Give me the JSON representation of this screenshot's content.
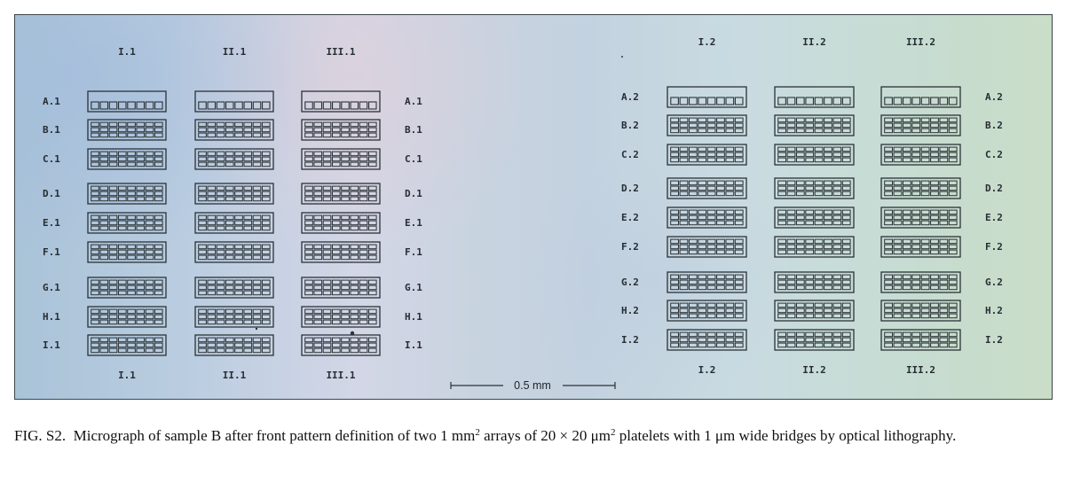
{
  "figure": {
    "arrays": [
      {
        "id": "1",
        "column_labels": [
          "I.1",
          "II.1",
          "III.1"
        ],
        "row_labels": [
          "A.1",
          "B.1",
          "C.1",
          "D.1",
          "E.1",
          "F.1",
          "G.1",
          "H.1",
          "I.1"
        ]
      },
      {
        "id": "2",
        "column_labels": [
          "I.2",
          "II.2",
          "III.2"
        ],
        "row_labels": [
          "A.2",
          "B.2",
          "C.2",
          "D.2",
          "E.2",
          "F.2",
          "G.2",
          "H.2",
          "I.2"
        ]
      }
    ],
    "scale_bar": {
      "label": "0.5 mm"
    },
    "colors": {
      "pattern": "#2b3236",
      "label": "#262d33"
    }
  },
  "caption": {
    "prefix": "FIG. S2.",
    "text_1": "Micrograph of sample B after front pattern definition of two 1 mm",
    "sup_1": "2",
    "text_2": " arrays of 20 × 20 μm",
    "sup_2": "2",
    "text_3": " platelets with 1 μm wide bridges by optical lithography."
  }
}
